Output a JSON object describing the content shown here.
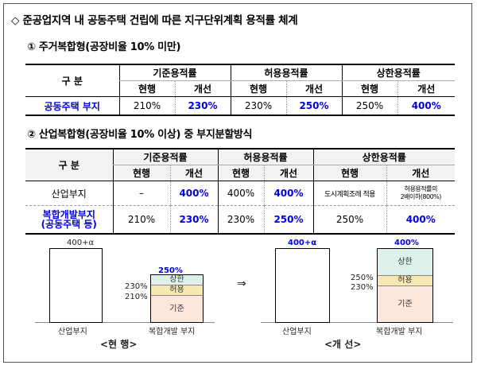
{
  "title": "◇ 준공업지역 내 공동주택 건립에 따른 지구단위계획 용적률 체계",
  "section1": {
    "heading": "① 주거복합형(공장비율 10% 미만)",
    "header_gubun": "구 분",
    "groups": [
      "기준용적률",
      "허용용적률",
      "상한용적률"
    ],
    "subcols": [
      "현행",
      "개선"
    ],
    "row_label": "공동주택 부지",
    "values": [
      "210%",
      "230%",
      "230%",
      "250%",
      "250%",
      "400%"
    ]
  },
  "section2": {
    "heading": "② 산업복합형(공장비율 10% 이상) 중 부지분할방식",
    "header_gubun": "구 분",
    "groups": [
      "기준용적률",
      "허용용적률",
      "상한용적률"
    ],
    "subcols": [
      "현행",
      "개선"
    ],
    "row1": {
      "label": "산업부지",
      "values": [
        "–",
        "400%",
        "400%",
        "400%",
        "도시계획조례 적용"
      ],
      "last": [
        "허용용적률의",
        "2배이하(800%)"
      ]
    },
    "row2": {
      "label": [
        "복합개발부지",
        "(공동주택 등)"
      ],
      "values": [
        "210%",
        "230%",
        "230%",
        "250%",
        "250%",
        "400%"
      ]
    }
  },
  "diagram": {
    "before": {
      "industrial_top": "400+α",
      "mixed_top": "250%",
      "seg_upper": "상한",
      "seg_allow": "허용",
      "seg_base": "기준",
      "left_230": "230%",
      "left_210": "210%",
      "x_industrial": "산업부지",
      "x_mixed": "복합개발 부지",
      "caption": "<현 행>"
    },
    "arrow": "⇒",
    "after": {
      "industrial_top": "400+α",
      "mixed_top": "400%",
      "seg_upper": "상한",
      "seg_allow": "허용",
      "seg_base": "기준",
      "left_250": "250%",
      "left_230": "230%",
      "x_industrial": "산업부지",
      "x_mixed": "복합개발 부지",
      "caption": "<개 선>"
    },
    "colors": {
      "upper": "#ddf1ea",
      "allow": "#f7e8b4",
      "base": "#fde6dc",
      "blue": "#0000e0"
    }
  }
}
